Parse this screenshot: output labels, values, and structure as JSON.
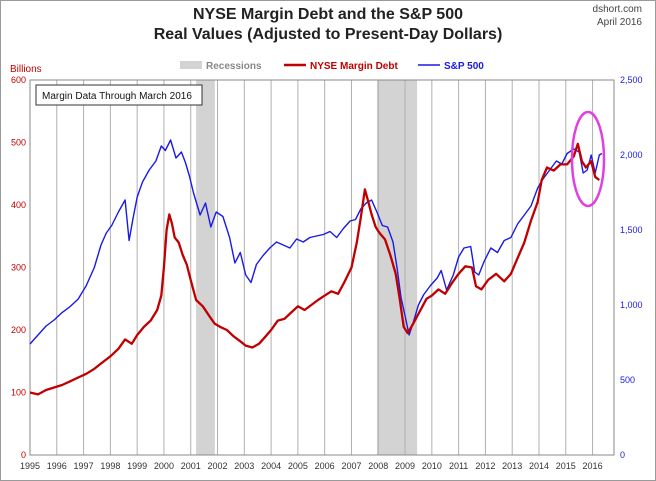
{
  "header": {
    "title_line1": "NYSE Margin Debt and the S&P 500",
    "title_line2": "Real Values (Adjusted to Present-Day Dollars)",
    "source": "dshort.com",
    "date": "April 2016"
  },
  "annotation": "Margin Data Through March 2016",
  "colors": {
    "margin_debt": "#c00000",
    "sp500": "#1a1ae6",
    "recession": "#d3d3d3",
    "highlight": "#e040e0",
    "left_axis_text": "#c00000",
    "right_axis_text": "#1a1ae6",
    "grid": "#b0b0b0"
  },
  "chart_data": {
    "type": "line",
    "title": "NYSE Margin Debt and the S&P 500 Real Values (Adjusted to Present-Day Dollars)",
    "xlabel": "",
    "ylabel_left": "Billions",
    "xlim": [
      1995,
      2016.8
    ],
    "x_ticks": [
      "1995",
      "1996",
      "1997",
      "1998",
      "1999",
      "2000",
      "2001",
      "2002",
      "2003",
      "2004",
      "2005",
      "2006",
      "2007",
      "2008",
      "2009",
      "2010",
      "2011",
      "2012",
      "2013",
      "2014",
      "2015",
      "2016"
    ],
    "ylim_left": [
      0,
      600
    ],
    "y_ticks_left": [
      "0",
      "100",
      "200",
      "300",
      "400",
      "500",
      "600"
    ],
    "ylim_right": [
      0,
      2500
    ],
    "y_ticks_right": [
      "0",
      "500",
      "1,000",
      "1,500",
      "2,000",
      "2,500"
    ],
    "grid": "vertical",
    "legend": {
      "placement": "top-center",
      "items": [
        {
          "label": "Recessions",
          "kind": "band"
        },
        {
          "label": "NYSE Margin Debt",
          "kind": "line"
        },
        {
          "label": "S&P 500",
          "kind": "line"
        }
      ]
    },
    "recessions": [
      [
        2001.2,
        2001.9
      ],
      [
        2007.95,
        2009.45
      ]
    ],
    "series": [
      {
        "name": "NYSE Margin Debt",
        "axis": "left",
        "points": [
          [
            1995.0,
            100
          ],
          [
            1995.3,
            97
          ],
          [
            1995.6,
            104
          ],
          [
            1995.9,
            108
          ],
          [
            1996.2,
            112
          ],
          [
            1996.5,
            118
          ],
          [
            1996.8,
            124
          ],
          [
            1997.1,
            130
          ],
          [
            1997.4,
            138
          ],
          [
            1997.7,
            148
          ],
          [
            1998.0,
            158
          ],
          [
            1998.3,
            170
          ],
          [
            1998.55,
            185
          ],
          [
            1998.8,
            178
          ],
          [
            1999.0,
            192
          ],
          [
            1999.25,
            205
          ],
          [
            1999.5,
            215
          ],
          [
            1999.75,
            232
          ],
          [
            1999.9,
            255
          ],
          [
            2000.0,
            300
          ],
          [
            2000.1,
            360
          ],
          [
            2000.2,
            385
          ],
          [
            2000.3,
            370
          ],
          [
            2000.4,
            348
          ],
          [
            2000.55,
            340
          ],
          [
            2000.7,
            320
          ],
          [
            2000.85,
            305
          ],
          [
            2001.0,
            280
          ],
          [
            2001.2,
            248
          ],
          [
            2001.45,
            238
          ],
          [
            2001.7,
            222
          ],
          [
            2001.9,
            210
          ],
          [
            2002.1,
            205
          ],
          [
            2002.35,
            200
          ],
          [
            2002.6,
            190
          ],
          [
            2002.85,
            182
          ],
          [
            2003.05,
            175
          ],
          [
            2003.3,
            172
          ],
          [
            2003.55,
            178
          ],
          [
            2003.8,
            190
          ],
          [
            2004.0,
            200
          ],
          [
            2004.25,
            215
          ],
          [
            2004.5,
            218
          ],
          [
            2004.75,
            228
          ],
          [
            2005.0,
            238
          ],
          [
            2005.25,
            232
          ],
          [
            2005.5,
            240
          ],
          [
            2005.75,
            248
          ],
          [
            2006.0,
            255
          ],
          [
            2006.25,
            262
          ],
          [
            2006.5,
            258
          ],
          [
            2006.75,
            278
          ],
          [
            2007.0,
            300
          ],
          [
            2007.2,
            340
          ],
          [
            2007.35,
            380
          ],
          [
            2007.5,
            425
          ],
          [
            2007.6,
            410
          ],
          [
            2007.75,
            385
          ],
          [
            2007.9,
            365
          ],
          [
            2008.05,
            355
          ],
          [
            2008.25,
            345
          ],
          [
            2008.45,
            320
          ],
          [
            2008.65,
            290
          ],
          [
            2008.8,
            250
          ],
          [
            2008.95,
            205
          ],
          [
            2009.1,
            195
          ],
          [
            2009.3,
            210
          ],
          [
            2009.55,
            230
          ],
          [
            2009.8,
            250
          ],
          [
            2010.0,
            255
          ],
          [
            2010.25,
            265
          ],
          [
            2010.5,
            258
          ],
          [
            2010.75,
            275
          ],
          [
            2011.0,
            290
          ],
          [
            2011.25,
            302
          ],
          [
            2011.5,
            300
          ],
          [
            2011.65,
            270
          ],
          [
            2011.85,
            265
          ],
          [
            2012.1,
            280
          ],
          [
            2012.4,
            290
          ],
          [
            2012.7,
            278
          ],
          [
            2012.95,
            290
          ],
          [
            2013.2,
            315
          ],
          [
            2013.45,
            340
          ],
          [
            2013.7,
            375
          ],
          [
            2013.95,
            405
          ],
          [
            2014.1,
            440
          ],
          [
            2014.3,
            460
          ],
          [
            2014.55,
            455
          ],
          [
            2014.8,
            465
          ],
          [
            2015.05,
            465
          ],
          [
            2015.3,
            478
          ],
          [
            2015.45,
            498
          ],
          [
            2015.6,
            470
          ],
          [
            2015.75,
            460
          ],
          [
            2015.95,
            470
          ],
          [
            2016.1,
            445
          ],
          [
            2016.25,
            440
          ]
        ]
      },
      {
        "name": "S&P 500",
        "axis": "right",
        "points": [
          [
            1995.0,
            740
          ],
          [
            1995.3,
            800
          ],
          [
            1995.6,
            860
          ],
          [
            1995.9,
            900
          ],
          [
            1996.2,
            950
          ],
          [
            1996.5,
            990
          ],
          [
            1996.8,
            1040
          ],
          [
            1997.1,
            1130
          ],
          [
            1997.4,
            1250
          ],
          [
            1997.65,
            1400
          ],
          [
            1997.85,
            1480
          ],
          [
            1998.05,
            1530
          ],
          [
            1998.3,
            1620
          ],
          [
            1998.55,
            1700
          ],
          [
            1998.7,
            1430
          ],
          [
            1998.85,
            1580
          ],
          [
            1999.0,
            1720
          ],
          [
            1999.2,
            1820
          ],
          [
            1999.45,
            1900
          ],
          [
            1999.7,
            1960
          ],
          [
            1999.9,
            2060
          ],
          [
            2000.05,
            2030
          ],
          [
            2000.25,
            2100
          ],
          [
            2000.45,
            1980
          ],
          [
            2000.65,
            2020
          ],
          [
            2000.8,
            1950
          ],
          [
            2000.95,
            1860
          ],
          [
            2001.1,
            1750
          ],
          [
            2001.35,
            1600
          ],
          [
            2001.55,
            1680
          ],
          [
            2001.75,
            1520
          ],
          [
            2001.95,
            1620
          ],
          [
            2002.2,
            1590
          ],
          [
            2002.45,
            1450
          ],
          [
            2002.65,
            1280
          ],
          [
            2002.85,
            1350
          ],
          [
            2003.05,
            1200
          ],
          [
            2003.25,
            1150
          ],
          [
            2003.45,
            1270
          ],
          [
            2003.7,
            1330
          ],
          [
            2003.95,
            1380
          ],
          [
            2004.2,
            1420
          ],
          [
            2004.45,
            1400
          ],
          [
            2004.7,
            1380
          ],
          [
            2004.95,
            1440
          ],
          [
            2005.2,
            1420
          ],
          [
            2005.45,
            1450
          ],
          [
            2005.7,
            1460
          ],
          [
            2005.95,
            1470
          ],
          [
            2006.2,
            1490
          ],
          [
            2006.45,
            1450
          ],
          [
            2006.7,
            1510
          ],
          [
            2006.95,
            1560
          ],
          [
            2007.15,
            1570
          ],
          [
            2007.35,
            1640
          ],
          [
            2007.55,
            1680
          ],
          [
            2007.75,
            1700
          ],
          [
            2007.95,
            1620
          ],
          [
            2008.15,
            1530
          ],
          [
            2008.35,
            1520
          ],
          [
            2008.55,
            1420
          ],
          [
            2008.7,
            1250
          ],
          [
            2008.85,
            1050
          ],
          [
            2009.0,
            930
          ],
          [
            2009.15,
            800
          ],
          [
            2009.3,
            880
          ],
          [
            2009.5,
            1000
          ],
          [
            2009.7,
            1070
          ],
          [
            2009.95,
            1130
          ],
          [
            2010.2,
            1180
          ],
          [
            2010.35,
            1230
          ],
          [
            2010.55,
            1100
          ],
          [
            2010.8,
            1200
          ],
          [
            2011.0,
            1320
          ],
          [
            2011.2,
            1380
          ],
          [
            2011.45,
            1390
          ],
          [
            2011.6,
            1220
          ],
          [
            2011.75,
            1200
          ],
          [
            2011.95,
            1290
          ],
          [
            2012.2,
            1380
          ],
          [
            2012.45,
            1350
          ],
          [
            2012.7,
            1430
          ],
          [
            2012.95,
            1450
          ],
          [
            2013.2,
            1540
          ],
          [
            2013.45,
            1600
          ],
          [
            2013.7,
            1660
          ],
          [
            2013.95,
            1780
          ],
          [
            2014.15,
            1840
          ],
          [
            2014.4,
            1900
          ],
          [
            2014.65,
            1960
          ],
          [
            2014.85,
            1940
          ],
          [
            2015.05,
            2010
          ],
          [
            2015.3,
            2040
          ],
          [
            2015.5,
            2020
          ],
          [
            2015.65,
            1880
          ],
          [
            2015.8,
            1900
          ],
          [
            2015.95,
            2000
          ],
          [
            2016.1,
            1880
          ],
          [
            2016.25,
            2000
          ],
          [
            2016.35,
            2010
          ]
        ]
      }
    ]
  }
}
